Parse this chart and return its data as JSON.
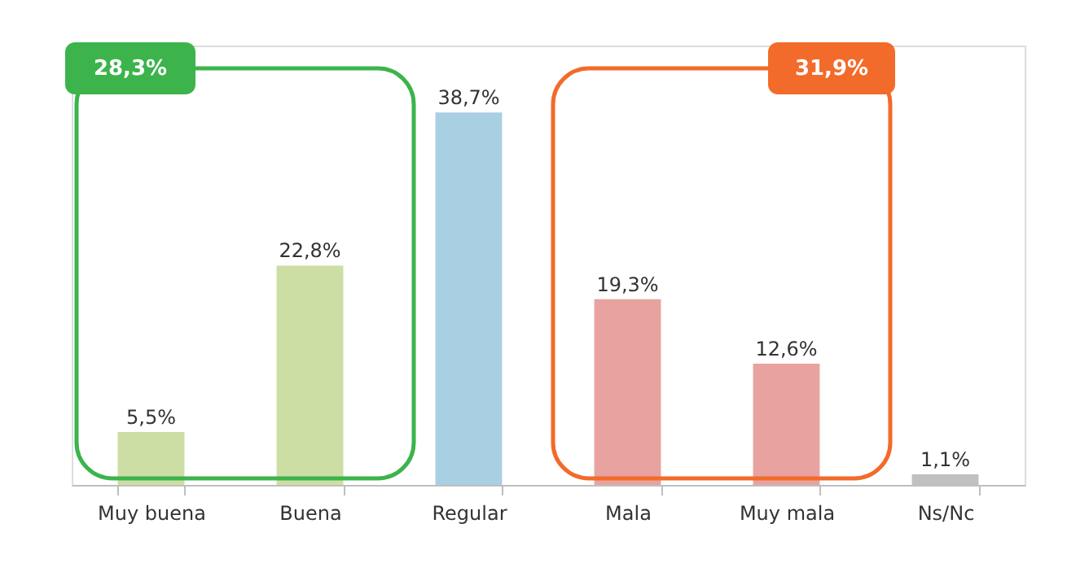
{
  "chart_data": {
    "type": "bar",
    "categories": [
      "Muy buena",
      "Buena",
      "Regular",
      "Mala",
      "Muy mala",
      "Ns/Nc"
    ],
    "values": [
      5.5,
      22.8,
      38.7,
      19.3,
      12.6,
      1.1
    ],
    "colors": [
      "#cddea5",
      "#cddea5",
      "#a9cfe3",
      "#e8a3a0",
      "#e8a3a0",
      "#c0c0c0"
    ],
    "value_labels": [
      "5,5%",
      "22,8%",
      "38,7%",
      "19,3%",
      "12,6%",
      "1,1%"
    ],
    "annotations": [
      "28,3%",
      "31,9%"
    ],
    "grid": false,
    "legend": false
  }
}
